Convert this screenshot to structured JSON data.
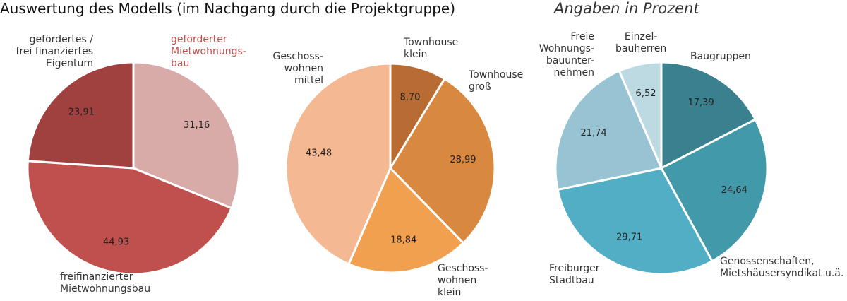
{
  "title": "Auswertung des Modells (im Nachgang durch die Projektgruppe)",
  "subtitle": "Angaben in Prozent",
  "chart_data": [
    {
      "type": "pie",
      "categories": [
        "geförderter\nMietwohnungs-\nbau",
        "freifinanzierter\nMietwohnungsbau",
        "gefördertes /\nfrei finanziertes\nEigentum"
      ],
      "values": [
        31.16,
        44.93,
        23.91
      ],
      "value_labels": [
        "31,16",
        "44,93",
        "23,91"
      ],
      "colors": [
        "#d8aba8",
        "#c0504d",
        "#a1413f"
      ]
    },
    {
      "type": "pie",
      "categories": [
        "Townhouse\nklein",
        "Townhouse\ngroß",
        "Geschoss-\nwohnen\nklein",
        "Geschoss-\nwohnen\nmittel"
      ],
      "values": [
        8.7,
        28.99,
        18.84,
        43.48
      ],
      "value_labels": [
        "8,70",
        "28,99",
        "18,84",
        "43,48"
      ],
      "colors": [
        "#b86b32",
        "#d9883f",
        "#f0a04e",
        "#f4b892"
      ]
    },
    {
      "type": "pie",
      "categories": [
        "Baugruppen",
        "Genossenschaften,\nMietshäusersyndikat u.ä.",
        "Freiburger\nStadtbau",
        "Freie\nWohnungs-\nbauunter-\nnehmen",
        "Einzel-\nbauherren"
      ],
      "values": [
        17.39,
        24.64,
        29.71,
        21.74,
        6.52
      ],
      "value_labels": [
        "17,39",
        "24,64",
        "29,71",
        "21,74",
        "6,52"
      ],
      "colors": [
        "#3a808f",
        "#4299a9",
        "#52aec4",
        "#97c3d2",
        "#bdd9e2"
      ]
    }
  ]
}
